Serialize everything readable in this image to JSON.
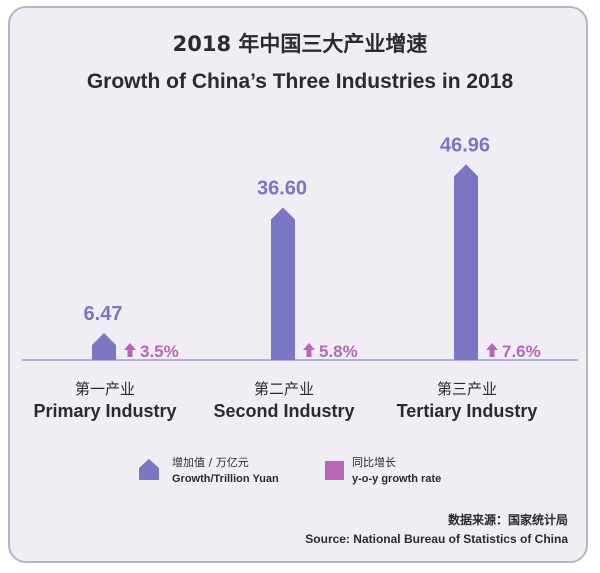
{
  "title_cn": "2018 年中国三大产业增速",
  "title_en": "Growth of China’s Three Industries in 2018",
  "chart_data": {
    "type": "bar",
    "categories": [
      {
        "cn": "第一产业",
        "en": "Primary Industry"
      },
      {
        "cn": "第二产业",
        "en": "Second Industry"
      },
      {
        "cn": "第三产业",
        "en": "Tertiary Industry"
      }
    ],
    "series": [
      {
        "name_cn": "增加值 / 万亿元",
        "name_en": "Growth/Trillion Yuan",
        "values": [
          6.47,
          36.6,
          46.96
        ],
        "labels": [
          "6.47",
          "36.60",
          "46.96"
        ],
        "color": "#7a76c4"
      },
      {
        "name_cn": "同比增长",
        "name_en": "y-o-y growth rate",
        "values": [
          3.5,
          5.8,
          7.6
        ],
        "labels": [
          "3.5%",
          "5.8%",
          "7.6%"
        ],
        "color": "#b766b8"
      }
    ],
    "ylim": [
      0,
      48
    ],
    "grid": false,
    "legend_position": "bottom-center"
  },
  "source_cn": "数据来源：国家统计局",
  "source_en": "Source:  National Bureau of Statistics of China",
  "colors": {
    "background": "#f1edf4",
    "border": "#b9b2c6",
    "bar": "#7a76c4",
    "rate": "#b766b8",
    "baseline": "#8f8cc9"
  }
}
